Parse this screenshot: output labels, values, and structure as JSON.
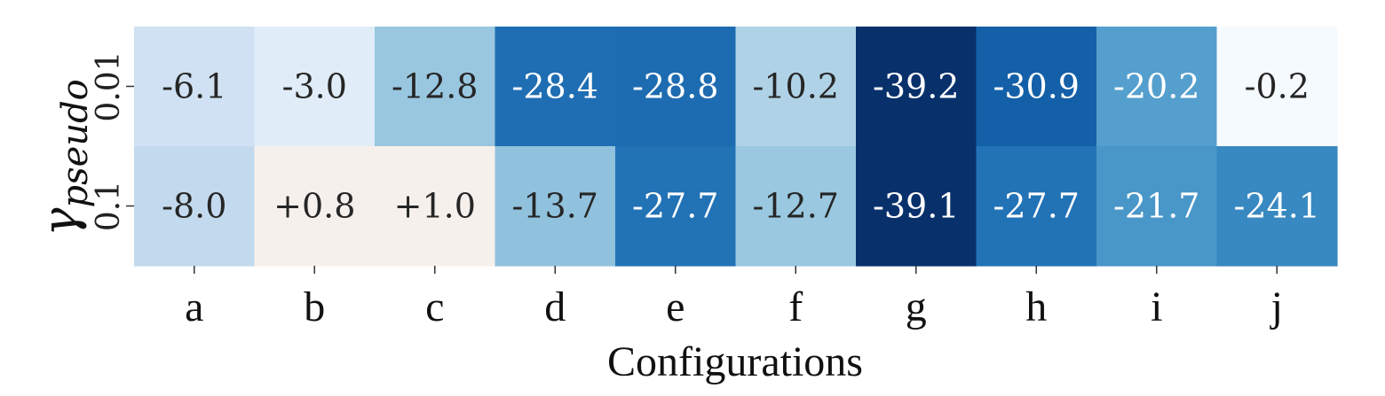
{
  "chart_data": {
    "type": "heatmap",
    "title": "",
    "xlabel": "Configurations",
    "ylabel": {
      "symbol": "γ",
      "subscript": "pseudo"
    },
    "columns": [
      "a",
      "b",
      "c",
      "d",
      "e",
      "f",
      "g",
      "h",
      "i",
      "j"
    ],
    "rows": [
      "0.01",
      "0.1"
    ],
    "values": [
      [
        -6.1,
        -3.0,
        -12.8,
        -28.4,
        -28.8,
        -10.2,
        -39.2,
        -30.9,
        -20.2,
        -0.2
      ],
      [
        -8.0,
        0.8,
        1.0,
        -13.7,
        -27.7,
        -12.7,
        -39.1,
        -27.7,
        -21.7,
        -24.1
      ]
    ],
    "labels": [
      [
        "-6.1",
        "-3.0",
        "-12.8",
        "-28.4",
        "-28.8",
        "-10.2",
        "-39.2",
        "-30.9",
        "-20.2",
        "-0.2"
      ],
      [
        "-8.0",
        "+0.8",
        "+1.0",
        "-13.7",
        "-27.7",
        "-12.7",
        "-39.1",
        "-27.7",
        "-21.7",
        "-24.1"
      ]
    ],
    "colormap": "Blues (negative) to warm near-white (positive)",
    "color_min": "#08306b",
    "color_mid": "#f7f7f7",
    "color_pos": "#f6f0ec",
    "vmin": -39.2,
    "vmax": 1.0,
    "colorbar": false,
    "grid": false
  }
}
